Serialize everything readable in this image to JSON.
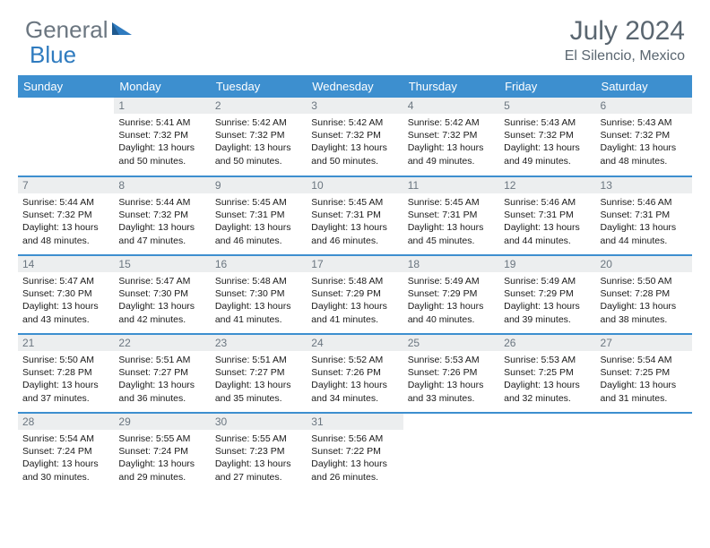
{
  "brand": {
    "part1": "General",
    "part2": "Blue"
  },
  "title": "July 2024",
  "subtitle": "El Silencio, Mexico",
  "colors": {
    "header_blue": "#3d8fcf",
    "daynum_bg": "#eceeef",
    "text_gray": "#6b7680",
    "brand_blue": "#2f7bbf"
  },
  "layout": {
    "first_weekday_index": 1,
    "days_in_month": 31
  },
  "weekdays": [
    "Sunday",
    "Monday",
    "Tuesday",
    "Wednesday",
    "Thursday",
    "Friday",
    "Saturday"
  ],
  "days": [
    {
      "n": 1,
      "sunrise": "5:41 AM",
      "sunset": "7:32 PM",
      "daylight": "13 hours and 50 minutes."
    },
    {
      "n": 2,
      "sunrise": "5:42 AM",
      "sunset": "7:32 PM",
      "daylight": "13 hours and 50 minutes."
    },
    {
      "n": 3,
      "sunrise": "5:42 AM",
      "sunset": "7:32 PM",
      "daylight": "13 hours and 50 minutes."
    },
    {
      "n": 4,
      "sunrise": "5:42 AM",
      "sunset": "7:32 PM",
      "daylight": "13 hours and 49 minutes."
    },
    {
      "n": 5,
      "sunrise": "5:43 AM",
      "sunset": "7:32 PM",
      "daylight": "13 hours and 49 minutes."
    },
    {
      "n": 6,
      "sunrise": "5:43 AM",
      "sunset": "7:32 PM",
      "daylight": "13 hours and 48 minutes."
    },
    {
      "n": 7,
      "sunrise": "5:44 AM",
      "sunset": "7:32 PM",
      "daylight": "13 hours and 48 minutes."
    },
    {
      "n": 8,
      "sunrise": "5:44 AM",
      "sunset": "7:32 PM",
      "daylight": "13 hours and 47 minutes."
    },
    {
      "n": 9,
      "sunrise": "5:45 AM",
      "sunset": "7:31 PM",
      "daylight": "13 hours and 46 minutes."
    },
    {
      "n": 10,
      "sunrise": "5:45 AM",
      "sunset": "7:31 PM",
      "daylight": "13 hours and 46 minutes."
    },
    {
      "n": 11,
      "sunrise": "5:45 AM",
      "sunset": "7:31 PM",
      "daylight": "13 hours and 45 minutes."
    },
    {
      "n": 12,
      "sunrise": "5:46 AM",
      "sunset": "7:31 PM",
      "daylight": "13 hours and 44 minutes."
    },
    {
      "n": 13,
      "sunrise": "5:46 AM",
      "sunset": "7:31 PM",
      "daylight": "13 hours and 44 minutes."
    },
    {
      "n": 14,
      "sunrise": "5:47 AM",
      "sunset": "7:30 PM",
      "daylight": "13 hours and 43 minutes."
    },
    {
      "n": 15,
      "sunrise": "5:47 AM",
      "sunset": "7:30 PM",
      "daylight": "13 hours and 42 minutes."
    },
    {
      "n": 16,
      "sunrise": "5:48 AM",
      "sunset": "7:30 PM",
      "daylight": "13 hours and 41 minutes."
    },
    {
      "n": 17,
      "sunrise": "5:48 AM",
      "sunset": "7:29 PM",
      "daylight": "13 hours and 41 minutes."
    },
    {
      "n": 18,
      "sunrise": "5:49 AM",
      "sunset": "7:29 PM",
      "daylight": "13 hours and 40 minutes."
    },
    {
      "n": 19,
      "sunrise": "5:49 AM",
      "sunset": "7:29 PM",
      "daylight": "13 hours and 39 minutes."
    },
    {
      "n": 20,
      "sunrise": "5:50 AM",
      "sunset": "7:28 PM",
      "daylight": "13 hours and 38 minutes."
    },
    {
      "n": 21,
      "sunrise": "5:50 AM",
      "sunset": "7:28 PM",
      "daylight": "13 hours and 37 minutes."
    },
    {
      "n": 22,
      "sunrise": "5:51 AM",
      "sunset": "7:27 PM",
      "daylight": "13 hours and 36 minutes."
    },
    {
      "n": 23,
      "sunrise": "5:51 AM",
      "sunset": "7:27 PM",
      "daylight": "13 hours and 35 minutes."
    },
    {
      "n": 24,
      "sunrise": "5:52 AM",
      "sunset": "7:26 PM",
      "daylight": "13 hours and 34 minutes."
    },
    {
      "n": 25,
      "sunrise": "5:53 AM",
      "sunset": "7:26 PM",
      "daylight": "13 hours and 33 minutes."
    },
    {
      "n": 26,
      "sunrise": "5:53 AM",
      "sunset": "7:25 PM",
      "daylight": "13 hours and 32 minutes."
    },
    {
      "n": 27,
      "sunrise": "5:54 AM",
      "sunset": "7:25 PM",
      "daylight": "13 hours and 31 minutes."
    },
    {
      "n": 28,
      "sunrise": "5:54 AM",
      "sunset": "7:24 PM",
      "daylight": "13 hours and 30 minutes."
    },
    {
      "n": 29,
      "sunrise": "5:55 AM",
      "sunset": "7:24 PM",
      "daylight": "13 hours and 29 minutes."
    },
    {
      "n": 30,
      "sunrise": "5:55 AM",
      "sunset": "7:23 PM",
      "daylight": "13 hours and 27 minutes."
    },
    {
      "n": 31,
      "sunrise": "5:56 AM",
      "sunset": "7:22 PM",
      "daylight": "13 hours and 26 minutes."
    }
  ],
  "labels": {
    "sunrise": "Sunrise:",
    "sunset": "Sunset:",
    "daylight": "Daylight:"
  }
}
